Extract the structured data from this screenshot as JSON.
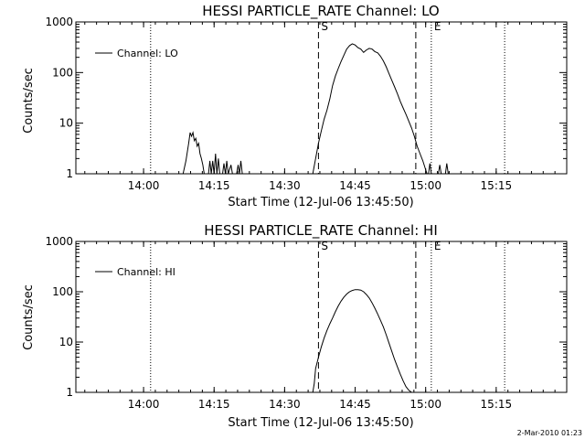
{
  "chart_data": [
    {
      "type": "line",
      "title": "HESSI PARTICLE_RATE Channel: LO",
      "xlabel": "Start Time (12-Jul-06 13:45:50)",
      "ylabel": "Counts/sec",
      "y_scale": "log",
      "ylim": [
        1,
        1000
      ],
      "xlim": [
        13.76,
        15.5
      ],
      "xticks": [
        {
          "x": 14.0,
          "label": "14:00"
        },
        {
          "x": 14.25,
          "label": "14:15"
        },
        {
          "x": 14.5,
          "label": "14:30"
        },
        {
          "x": 14.75,
          "label": "14:45"
        },
        {
          "x": 15.0,
          "label": "15:00"
        },
        {
          "x": 15.25,
          "label": "15:15"
        }
      ],
      "yticks": [
        {
          "y": 1,
          "label": "1"
        },
        {
          "y": 10,
          "label": "10"
        },
        {
          "y": 100,
          "label": "100"
        },
        {
          "y": 1000,
          "label": "1000"
        }
      ],
      "legend": {
        "label": "Channel: LO",
        "placement": "top-left"
      },
      "markers": [
        {
          "x": 14.025,
          "style": "dotted",
          "label": ""
        },
        {
          "x": 14.62,
          "style": "dashed",
          "label": "S"
        },
        {
          "x": 14.965,
          "style": "dashed",
          "label": ""
        },
        {
          "x": 15.02,
          "style": "dotted",
          "label": "E"
        },
        {
          "x": 15.28,
          "style": "dotted",
          "label": ""
        }
      ],
      "series": [
        {
          "name": "Channel: LO",
          "segments": [
            [
              [
                14.14,
                1
              ],
              [
                14.15,
                1.8
              ],
              [
                14.16,
                4.0
              ],
              [
                14.165,
                6.5
              ],
              [
                14.17,
                5.5
              ],
              [
                14.175,
                6.5
              ],
              [
                14.18,
                4.5
              ],
              [
                14.185,
                5.0
              ],
              [
                14.19,
                3.5
              ],
              [
                14.195,
                4.0
              ],
              [
                14.2,
                2.5
              ],
              [
                14.205,
                2.0
              ],
              [
                14.21,
                1.5
              ],
              [
                14.215,
                1.0
              ]
            ],
            [
              [
                14.23,
                1
              ],
              [
                14.235,
                1.8
              ],
              [
                14.24,
                1
              ],
              [
                14.245,
                1.8
              ],
              [
                14.25,
                1
              ],
              [
                14.255,
                2.5
              ],
              [
                14.26,
                1
              ],
              [
                14.265,
                2.0
              ],
              [
                14.27,
                1
              ]
            ],
            [
              [
                14.28,
                1
              ],
              [
                14.285,
                1.6
              ],
              [
                14.29,
                1
              ],
              [
                14.295,
                1.8
              ],
              [
                14.3,
                1
              ],
              [
                14.31,
                1.5
              ],
              [
                14.315,
                1
              ]
            ],
            [
              [
                14.33,
                1
              ],
              [
                14.335,
                1.5
              ],
              [
                14.34,
                1
              ],
              [
                14.345,
                1.8
              ],
              [
                14.35,
                1
              ]
            ],
            [
              [
                14.6,
                1
              ],
              [
                14.61,
                2.0
              ],
              [
                14.62,
                4.0
              ],
              [
                14.63,
                7.0
              ],
              [
                14.64,
                12
              ],
              [
                14.65,
                18
              ],
              [
                14.66,
                30
              ],
              [
                14.67,
                55
              ],
              [
                14.68,
                85
              ],
              [
                14.69,
                120
              ],
              [
                14.7,
                165
              ],
              [
                14.71,
                220
              ],
              [
                14.72,
                290
              ],
              [
                14.73,
                340
              ],
              [
                14.74,
                370
              ],
              [
                14.75,
                350
              ],
              [
                14.76,
                310
              ],
              [
                14.77,
                290
              ],
              [
                14.78,
                250
              ],
              [
                14.79,
                280
              ],
              [
                14.8,
                300
              ],
              [
                14.81,
                290
              ],
              [
                14.82,
                260
              ],
              [
                14.83,
                245
              ],
              [
                14.84,
                210
              ],
              [
                14.85,
                170
              ],
              [
                14.86,
                130
              ],
              [
                14.87,
                95
              ],
              [
                14.88,
                70
              ],
              [
                14.89,
                52
              ],
              [
                14.9,
                38
              ],
              [
                14.91,
                27
              ],
              [
                14.92,
                20
              ],
              [
                14.93,
                15
              ],
              [
                14.94,
                11
              ],
              [
                14.95,
                8.0
              ],
              [
                14.96,
                5.5
              ],
              [
                14.97,
                3.5
              ],
              [
                14.98,
                2.5
              ],
              [
                14.99,
                1.8
              ],
              [
                15.0,
                1.2
              ],
              [
                15.005,
                1.0
              ]
            ],
            [
              [
                15.01,
                1
              ],
              [
                15.015,
                1.6
              ],
              [
                15.02,
                1
              ]
            ],
            [
              [
                15.045,
                1
              ],
              [
                15.05,
                1.5
              ],
              [
                15.055,
                1
              ]
            ],
            [
              [
                15.07,
                1
              ],
              [
                15.075,
                1.6
              ],
              [
                15.08,
                1
              ]
            ]
          ]
        }
      ]
    },
    {
      "type": "line",
      "title": "HESSI PARTICLE_RATE Channel: HI",
      "xlabel": "Start Time (12-Jul-06 13:45:50)",
      "ylabel": "Counts/sec",
      "y_scale": "log",
      "ylim": [
        1,
        1000
      ],
      "xlim": [
        13.76,
        15.5
      ],
      "xticks": [
        {
          "x": 14.0,
          "label": "14:00"
        },
        {
          "x": 14.25,
          "label": "14:15"
        },
        {
          "x": 14.5,
          "label": "14:30"
        },
        {
          "x": 14.75,
          "label": "14:45"
        },
        {
          "x": 15.0,
          "label": "15:00"
        },
        {
          "x": 15.25,
          "label": "15:15"
        }
      ],
      "yticks": [
        {
          "y": 1,
          "label": "1"
        },
        {
          "y": 10,
          "label": "10"
        },
        {
          "y": 100,
          "label": "100"
        },
        {
          "y": 1000,
          "label": "1000"
        }
      ],
      "legend": {
        "label": "Channel: HI",
        "placement": "top-left"
      },
      "markers": [
        {
          "x": 14.025,
          "style": "dotted",
          "label": ""
        },
        {
          "x": 14.62,
          "style": "dashed",
          "label": "S"
        },
        {
          "x": 14.965,
          "style": "dashed",
          "label": ""
        },
        {
          "x": 15.02,
          "style": "dotted",
          "label": "E"
        },
        {
          "x": 15.28,
          "style": "dotted",
          "label": ""
        }
      ],
      "series": [
        {
          "name": "Channel: HI",
          "segments": [
            [
              [
                14.6,
                0.8
              ],
              [
                14.605,
                1.5
              ],
              [
                14.61,
                3.0
              ],
              [
                14.62,
                5.0
              ],
              [
                14.63,
                8.0
              ],
              [
                14.64,
                12
              ],
              [
                14.65,
                17
              ],
              [
                14.66,
                23
              ],
              [
                14.67,
                30
              ],
              [
                14.68,
                40
              ],
              [
                14.69,
                52
              ],
              [
                14.7,
                65
              ],
              [
                14.71,
                78
              ],
              [
                14.72,
                90
              ],
              [
                14.73,
                100
              ],
              [
                14.74,
                106
              ],
              [
                14.75,
                110
              ],
              [
                14.76,
                110
              ],
              [
                14.77,
                108
              ],
              [
                14.78,
                100
              ],
              [
                14.79,
                88
              ],
              [
                14.8,
                75
              ],
              [
                14.81,
                60
              ],
              [
                14.82,
                47
              ],
              [
                14.83,
                36
              ],
              [
                14.84,
                27
              ],
              [
                14.85,
                20
              ],
              [
                14.86,
                14
              ],
              [
                14.87,
                9.5
              ],
              [
                14.88,
                6.5
              ],
              [
                14.89,
                4.5
              ],
              [
                14.9,
                3.2
              ],
              [
                14.91,
                2.3
              ],
              [
                14.92,
                1.7
              ],
              [
                14.93,
                1.3
              ],
              [
                14.94,
                1.1
              ],
              [
                14.95,
                1.0
              ],
              [
                14.953,
                0.8
              ]
            ]
          ]
        }
      ]
    }
  ],
  "stamp": "2-Mar-2010 01:23"
}
